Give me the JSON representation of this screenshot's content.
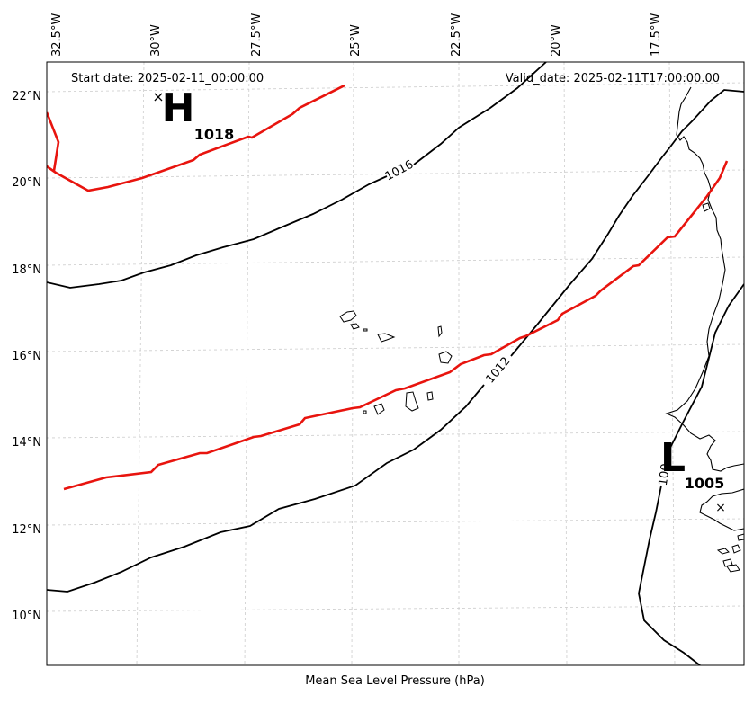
{
  "map": {
    "start_date_text": "Start date: 2025-02-11_00:00:00",
    "valid_date_text": "Valid_date: 2025-02-11T17:00:00.00",
    "caption": "Mean Sea Level Pressure (hPa)",
    "lon_labels": [
      "32.5°W",
      "30°W",
      "27.5°W",
      "25°W",
      "22.5°W",
      "20°W",
      "17.5°W"
    ],
    "lat_labels": [
      "22°N",
      "20°N",
      "18°N",
      "16°N",
      "14°N",
      "12°N",
      "10°N"
    ],
    "isobar_labels": [
      "1016",
      "1012",
      "100"
    ],
    "high_center": {
      "letter": "H",
      "value": "1018",
      "marker": "×"
    },
    "low_center": {
      "letter": "L",
      "value": "1005",
      "marker": "×"
    },
    "colors": {
      "front": "#e8140e",
      "isobar": "#000000",
      "grid": "#cccccc"
    }
  }
}
